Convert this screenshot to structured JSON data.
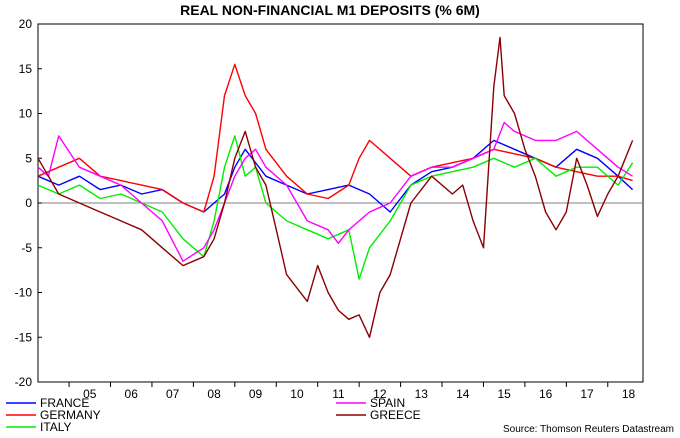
{
  "chart_data": {
    "type": "line",
    "title": "REAL NON-FINANCIAL M1 DEPOSITS (% 6M)",
    "source": "Source: Thomson Reuters Datastream",
    "xlabel": "",
    "ylabel": "",
    "xlim": [
      2004.25,
      2018.85
    ],
    "ylim": [
      -20,
      20
    ],
    "yticks": [
      20,
      15,
      10,
      5,
      0,
      -5,
      -10,
      -15,
      -20
    ],
    "xtick_labels": [
      "05",
      "06",
      "07",
      "08",
      "09",
      "10",
      "11",
      "12",
      "13",
      "14",
      "15",
      "16",
      "17",
      "18"
    ],
    "legend": "bottom",
    "series": [
      {
        "name": "FRANCE",
        "color": "#0000ff",
        "x": [
          2004.25,
          2004.75,
          2005.25,
          2005.75,
          2006.25,
          2006.75,
          2007.25,
          2007.75,
          2008.25,
          2008.75,
          2009.0,
          2009.25,
          2009.75,
          2010.25,
          2010.75,
          2011.25,
          2011.75,
          2012.25,
          2012.75,
          2013.25,
          2013.75,
          2014.25,
          2014.75,
          2015.25,
          2015.75,
          2016.25,
          2016.75,
          2017.25,
          2017.75,
          2018.25,
          2018.6
        ],
        "y": [
          3,
          2,
          3,
          1.5,
          2,
          1,
          1.5,
          0,
          -1,
          1,
          4,
          6,
          3,
          2,
          1,
          1.5,
          2,
          1,
          -1,
          2,
          3.5,
          4,
          5,
          7,
          6,
          5,
          4,
          6,
          5,
          3,
          1.5
        ]
      },
      {
        "name": "GERMANY",
        "color": "#ff0000",
        "x": [
          2004.25,
          2004.75,
          2005.25,
          2005.75,
          2006.25,
          2006.75,
          2007.25,
          2007.75,
          2008.25,
          2008.5,
          2008.75,
          2009.0,
          2009.25,
          2009.5,
          2009.75,
          2010.25,
          2010.75,
          2011.25,
          2011.75,
          2012.0,
          2012.25,
          2012.75,
          2013.25,
          2013.75,
          2014.25,
          2014.75,
          2015.25,
          2015.75,
          2016.25,
          2016.75,
          2017.25,
          2017.75,
          2018.25,
          2018.6
        ],
        "y": [
          3,
          4,
          5,
          3,
          2.5,
          2,
          1.5,
          0,
          -1,
          3,
          12,
          15.5,
          12,
          10,
          6,
          3,
          1,
          0.5,
          2,
          5,
          7,
          5,
          3,
          4,
          4.5,
          5,
          6,
          5.5,
          5,
          4,
          3.5,
          3,
          3,
          2.5
        ]
      },
      {
        "name": "ITALY",
        "color": "#00ee00",
        "x": [
          2004.25,
          2004.75,
          2005.25,
          2005.75,
          2006.25,
          2006.75,
          2007.25,
          2007.75,
          2008.25,
          2008.5,
          2008.75,
          2009.0,
          2009.25,
          2009.5,
          2009.75,
          2010.25,
          2010.75,
          2011.25,
          2011.75,
          2012.0,
          2012.25,
          2012.75,
          2013.25,
          2013.75,
          2014.25,
          2014.75,
          2015.25,
          2015.75,
          2016.25,
          2016.75,
          2017.25,
          2017.75,
          2018.25,
          2018.6
        ],
        "y": [
          2,
          1,
          2,
          0.5,
          1,
          0,
          -1,
          -4,
          -6,
          -2,
          4,
          7.5,
          3,
          4,
          0,
          -2,
          -3,
          -4,
          -3,
          -8.5,
          -5,
          -2,
          2,
          3,
          3.5,
          4,
          5,
          4,
          5,
          3,
          4,
          4,
          2,
          4.5
        ]
      },
      {
        "name": "SPAIN",
        "color": "#ff00ff",
        "x": [
          2004.25,
          2004.5,
          2004.75,
          2005.25,
          2005.75,
          2006.25,
          2006.75,
          2007.25,
          2007.75,
          2008.25,
          2008.5,
          2008.75,
          2009.0,
          2009.25,
          2009.5,
          2009.75,
          2010.25,
          2010.75,
          2011.25,
          2011.5,
          2011.75,
          2012.25,
          2012.75,
          2013.25,
          2013.75,
          2014.25,
          2014.75,
          2015.25,
          2015.5,
          2015.75,
          2016.25,
          2016.75,
          2017.25,
          2017.75,
          2018.25,
          2018.6
        ],
        "y": [
          4,
          3,
          7.5,
          4,
          3,
          2,
          0,
          -2,
          -6.5,
          -5,
          -3,
          0,
          3,
          5,
          6,
          4,
          2,
          -2,
          -3,
          -4.5,
          -3,
          -1,
          0,
          3,
          4,
          4,
          5,
          6,
          9,
          8,
          7,
          7,
          8,
          6,
          4,
          3
        ]
      },
      {
        "name": "GREECE",
        "color": "#8b0000",
        "x": [
          2004.25,
          2004.5,
          2004.75,
          2005.25,
          2005.75,
          2006.25,
          2006.75,
          2007.25,
          2007.75,
          2008.25,
          2008.5,
          2008.75,
          2009.0,
          2009.25,
          2009.5,
          2009.75,
          2010.0,
          2010.25,
          2010.75,
          2011.0,
          2011.25,
          2011.5,
          2011.75,
          2012.0,
          2012.25,
          2012.5,
          2012.75,
          2013.25,
          2013.75,
          2014.25,
          2014.5,
          2014.75,
          2015.0,
          2015.25,
          2015.4,
          2015.5,
          2015.75,
          2016.0,
          2016.25,
          2016.5,
          2016.75,
          2017.0,
          2017.25,
          2017.5,
          2017.75,
          2018.0,
          2018.25,
          2018.6
        ],
        "y": [
          5,
          3,
          1,
          0,
          -1,
          -2,
          -3,
          -5,
          -7,
          -6,
          -4,
          0,
          5,
          8,
          4,
          2,
          -3,
          -8,
          -11,
          -7,
          -10,
          -12,
          -13,
          -12.5,
          -15,
          -10,
          -8,
          0,
          3,
          1,
          2,
          -2,
          -5,
          13,
          18.5,
          12,
          10,
          6,
          3,
          -1,
          -3,
          -1,
          5,
          2,
          -1.5,
          1,
          3,
          7
        ]
      }
    ]
  }
}
